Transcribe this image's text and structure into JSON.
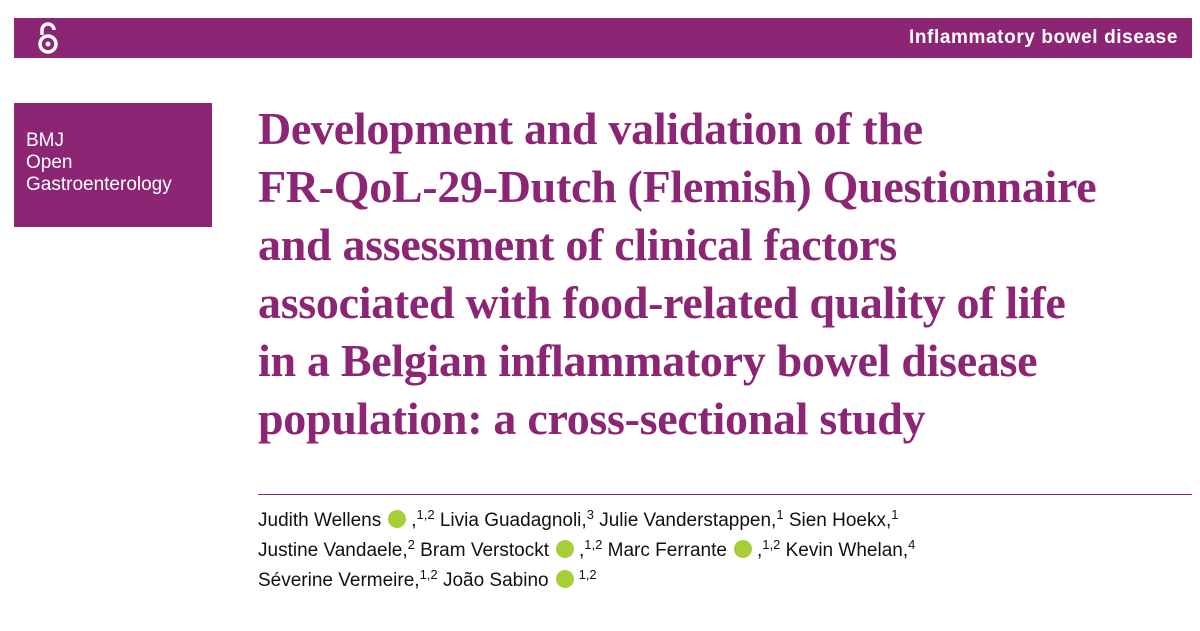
{
  "header": {
    "section": "Inflammatory bowel disease"
  },
  "journal": {
    "lines": [
      "BMJ",
      "Open",
      "Gastroenterology"
    ]
  },
  "title_lines": [
    "Development and validation of the",
    "FR-QoL-29-Dutch (Flemish) Questionnaire",
    "and assessment of clinical factors",
    "associated with food-related quality of life",
    "in a Belgian inflammatory bowel disease",
    "population: a cross-sectional study"
  ],
  "authors": [
    [
      {
        "name": "Judith Wellens",
        "orcid": true,
        "punct": ",",
        "sup": "1,2"
      },
      {
        "name": "Livia Guadagnoli",
        "punct": ",",
        "sup": "3"
      },
      {
        "name": "Julie Vanderstappen",
        "punct": ",",
        "sup": "1"
      },
      {
        "name": "Sien Hoekx",
        "punct": ",",
        "sup": "1"
      }
    ],
    [
      {
        "name": "Justine Vandaele",
        "punct": ",",
        "sup": "2"
      },
      {
        "name": "Bram Verstockt",
        "orcid": true,
        "punct": ",",
        "sup": "1,2"
      },
      {
        "name": "Marc Ferrante",
        "orcid": true,
        "punct": ",",
        "sup": "1,2"
      },
      {
        "name": "Kevin Whelan",
        "punct": ",",
        "sup": "4"
      }
    ],
    [
      {
        "name": "Séverine Vermeire",
        "punct": ",",
        "sup": "1,2"
      },
      {
        "name": "João Sabino",
        "orcid": true,
        "sup": "1,2"
      }
    ]
  ]
}
